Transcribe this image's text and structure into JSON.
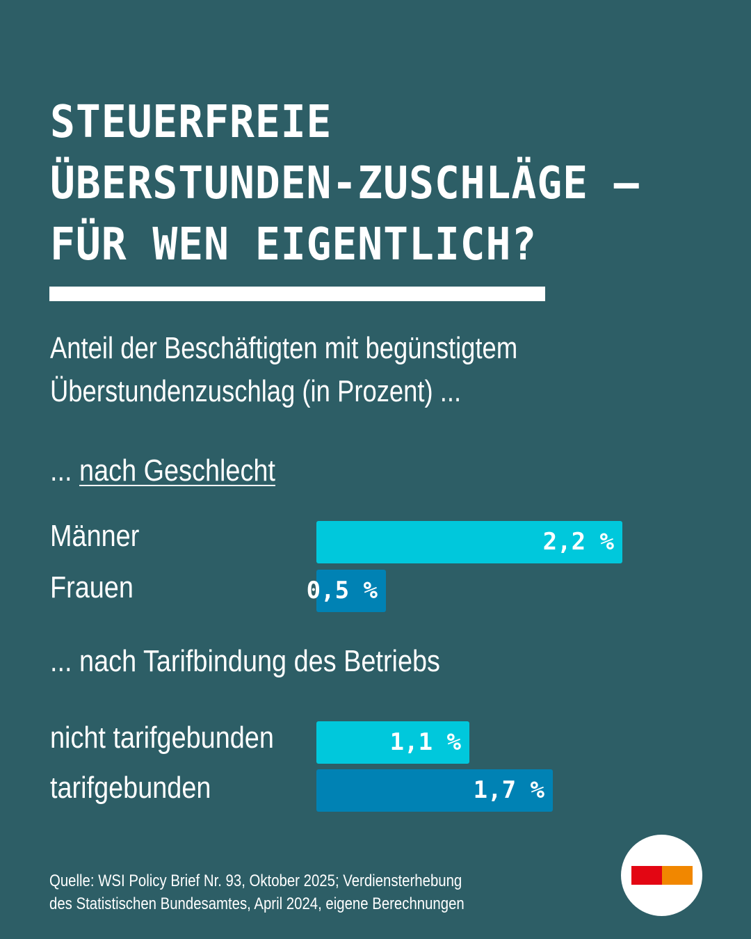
{
  "title": {
    "lines": [
      "STEUERFREIE",
      "ÜBERSTUNDEN-ZUSCHLÄGE –",
      "FÜR WEN EIGENTLICH?"
    ]
  },
  "subtitle": {
    "lines": [
      "Anteil der Beschäftigten mit begünstigtem",
      "Überstundenzuschlag (in Prozent) ..."
    ]
  },
  "source": {
    "lines": [
      "Quelle: WSI Policy Brief Nr. 93, Oktober 2025; Verdiensterhebung",
      "des Statistischen Bundesamtes, April 2024, eigene Berechnungen"
    ]
  },
  "colors": {
    "background": "#2d5e66",
    "light_bar": "#00c8dc",
    "dark_bar": "#0082b4",
    "logo_red": "#e30613",
    "logo_orange": "#f18700"
  },
  "logo": {
    "icon": "logo-icon"
  },
  "chart_data": {
    "type": "bar",
    "orientation": "horizontal",
    "unit": "%",
    "max_value": 2.2,
    "sections": [
      {
        "prefix": "... ",
        "heading": "nach Geschlecht",
        "categories": [
          "Männer",
          "Frauen"
        ],
        "values": [
          2.2,
          0.5
        ],
        "value_labels": [
          "2,2 %",
          "0,5 %"
        ],
        "colors": [
          "#00c8dc",
          "#0082b4"
        ]
      },
      {
        "prefix": "... ",
        "heading": "nach Tarifbindung des Betriebs",
        "categories": [
          "nicht tarifgebunden",
          "tarifgebunden"
        ],
        "values": [
          1.1,
          1.7
        ],
        "value_labels": [
          "1,1 %",
          "1,7 %"
        ],
        "colors": [
          "#00c8dc",
          "#0082b4"
        ]
      }
    ]
  }
}
